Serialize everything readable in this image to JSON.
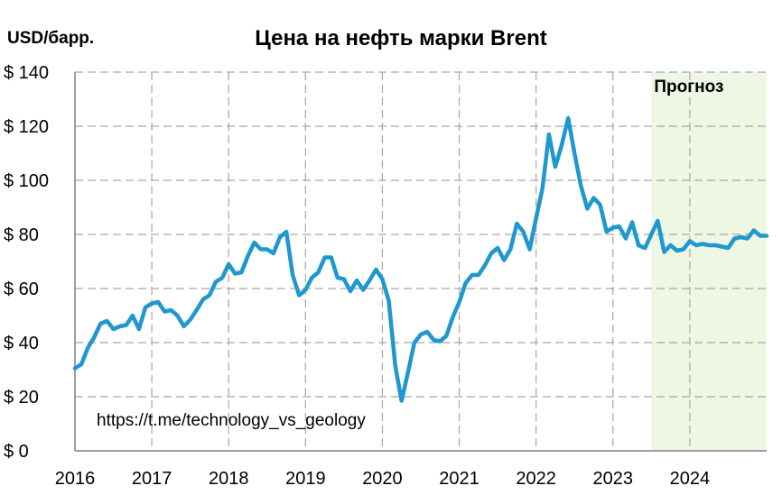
{
  "chart_data": {
    "type": "line",
    "title": "Цена на нефть марки Brent",
    "ylabel": "USD/барр.",
    "xlabel": "",
    "xlim": [
      2016,
      2025
    ],
    "ylim": [
      0,
      140
    ],
    "y_ticks": [
      0,
      20,
      40,
      60,
      80,
      100,
      120,
      140
    ],
    "y_tick_labels": [
      "$ 0",
      "$ 20",
      "$ 40",
      "$ 60",
      "$ 80",
      "$ 100",
      "$ 120",
      "$ 140"
    ],
    "x_ticks": [
      2016,
      2017,
      2018,
      2019,
      2020,
      2021,
      2022,
      2023,
      2024
    ],
    "x_tick_labels": [
      "2016",
      "2017",
      "2018",
      "2019",
      "2020",
      "2021",
      "2022",
      "2023",
      "2024"
    ],
    "grid": true,
    "line_color": "#1f97cf",
    "forecast": {
      "label": "Прогноз",
      "start": 2023.5,
      "end": 2025,
      "color": "#eef6e4"
    },
    "annotation": "https://t.me/technology_vs_geology",
    "series": [
      {
        "x": [
          2016.0,
          2016.083,
          2016.167,
          2016.25,
          2016.333,
          2016.417,
          2016.5,
          2016.583,
          2016.667,
          2016.75,
          2016.833,
          2016.917,
          2017.0,
          2017.083,
          2017.167,
          2017.25,
          2017.333,
          2017.417,
          2017.5,
          2017.583,
          2017.667,
          2017.75,
          2017.833,
          2017.917,
          2018.0,
          2018.083,
          2018.167,
          2018.25,
          2018.333,
          2018.417,
          2018.5,
          2018.583,
          2018.667,
          2018.75,
          2018.833,
          2018.917,
          2019.0,
          2019.083,
          2019.167,
          2019.25,
          2019.333,
          2019.417,
          2019.5,
          2019.583,
          2019.667,
          2019.75,
          2019.833,
          2019.917,
          2020.0,
          2020.083,
          2020.167,
          2020.25,
          2020.333,
          2020.417,
          2020.5,
          2020.583,
          2020.667,
          2020.75,
          2020.833,
          2020.917,
          2021.0,
          2021.083,
          2021.167,
          2021.25,
          2021.333,
          2021.417,
          2021.5,
          2021.583,
          2021.667,
          2021.75,
          2021.833,
          2021.917,
          2022.0,
          2022.083,
          2022.167,
          2022.25,
          2022.333,
          2022.417,
          2022.5,
          2022.583,
          2022.667,
          2022.75,
          2022.833,
          2022.917,
          2023.0,
          2023.083,
          2023.167,
          2023.25,
          2023.333,
          2023.417,
          2023.5,
          2023.583,
          2023.667,
          2023.75,
          2023.833,
          2023.917,
          2024.0,
          2024.083,
          2024.167,
          2024.25,
          2024.333,
          2024.417,
          2024.5,
          2024.583,
          2024.667,
          2024.75,
          2024.833,
          2024.917,
          2025.0
        ],
        "y": [
          30.5,
          32,
          38,
          42,
          47,
          48,
          45,
          46,
          46.5,
          50,
          45,
          53,
          54.5,
          55,
          51.5,
          52,
          50,
          46,
          48.5,
          52,
          56,
          57.5,
          62.5,
          64,
          69,
          65.5,
          66,
          72,
          77,
          74.5,
          74.5,
          73,
          79,
          81,
          65,
          57.5,
          59.5,
          64,
          66,
          71.5,
          71.5,
          64,
          63.5,
          59,
          63,
          59.5,
          63,
          67,
          63.5,
          55.5,
          31.5,
          18.5,
          29,
          40,
          43,
          44,
          41,
          40.5,
          42.5,
          49.5,
          55,
          62,
          65,
          65,
          68.5,
          73,
          75,
          70.5,
          74.5,
          84,
          81,
          74.5,
          86,
          97,
          117,
          105,
          113,
          123,
          110,
          98,
          89.5,
          93.5,
          91,
          81,
          82.5,
          83,
          78.5,
          84.5,
          76,
          75,
          80,
          85,
          73.5,
          76,
          74,
          74.5,
          77.5,
          76,
          76.5,
          76,
          76,
          75.5,
          75,
          78.5,
          79,
          78.5,
          81.5,
          79.5,
          79.5
        ]
      }
    ]
  }
}
